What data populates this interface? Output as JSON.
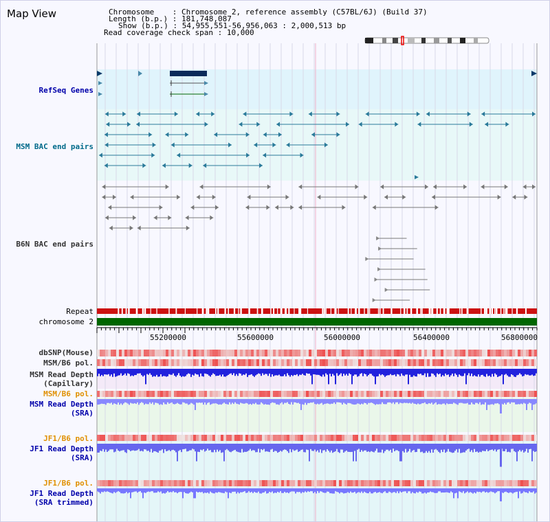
{
  "page_title": "Map View",
  "info": {
    "chromosome_label": "Chromosome",
    "chromosome_value": "Chromosome 2, reference assembly (C57BL/6J) (Build 37)",
    "length_label": "Length (b.p.)",
    "length_value": "181,748,087",
    "show_label": "Show (b.p.)",
    "show_value": "54,955,551-56,956,063 : 2,000,513 bp",
    "coverage_label": "Read coverage check span",
    "coverage_value": "10,000"
  },
  "tracks": {
    "refseq": "RefSeq Genes",
    "msm_bac": "MSM BAC end pairs",
    "b6n_bac": "B6N BAC end pairs",
    "repeat": "Repeat",
    "chromosome": "chromosome 2",
    "dbsnp": "dbSNP(Mouse)",
    "msm_b6_pol": "MSM/B6 pol.",
    "msm_rd_cap_1": "MSM Read Depth",
    "msm_rd_cap_2": "(Capillary)",
    "msm_b6_pol2": "MSM/B6 pol.",
    "msm_rd_sra_1": "MSM Read Depth",
    "msm_rd_sra_2": "(SRA)",
    "jf1_b6_pol": "JF1/B6 pol.",
    "jf1_rd_sra_1": "JF1 Read Depth",
    "jf1_rd_sra_2": "(SRA)",
    "jf1_b6_pol2": "JF1/B6 pol.",
    "jf1_rd_trim_1": "JF1 Read Depth",
    "jf1_rd_trim_2": "(SRA trimmed)"
  },
  "axis_ticks": [
    "55200000",
    "55600000",
    "56000000",
    "56400000",
    "56800000"
  ],
  "colors": {
    "refseq_bg": "#e0f4fc",
    "msm_bac_bg": "#e8f8f8",
    "chromosome": "#006600",
    "repeat": "#cc1111",
    "depth_blue": "#2222dd",
    "depth_light": "#8888ff",
    "snp_red": "#ee3333"
  }
}
